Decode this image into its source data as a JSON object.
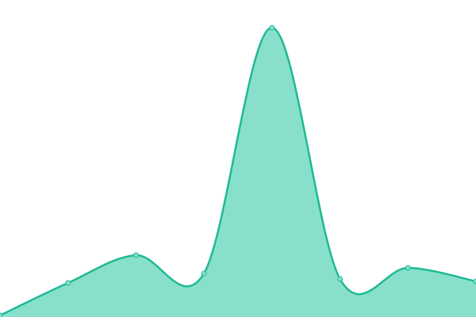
{
  "chart_data": {
    "type": "area",
    "categories": [
      null,
      null,
      null,
      null,
      null,
      null,
      null,
      null
    ],
    "series": [
      {
        "color": "#1fb994",
        "fill": "#88e0cc",
        "values": [
          2,
          43,
          78,
          55,
          365,
          48,
          62,
          45
        ]
      }
    ],
    "ylim": [
      0,
      400
    ],
    "markers": true
  }
}
